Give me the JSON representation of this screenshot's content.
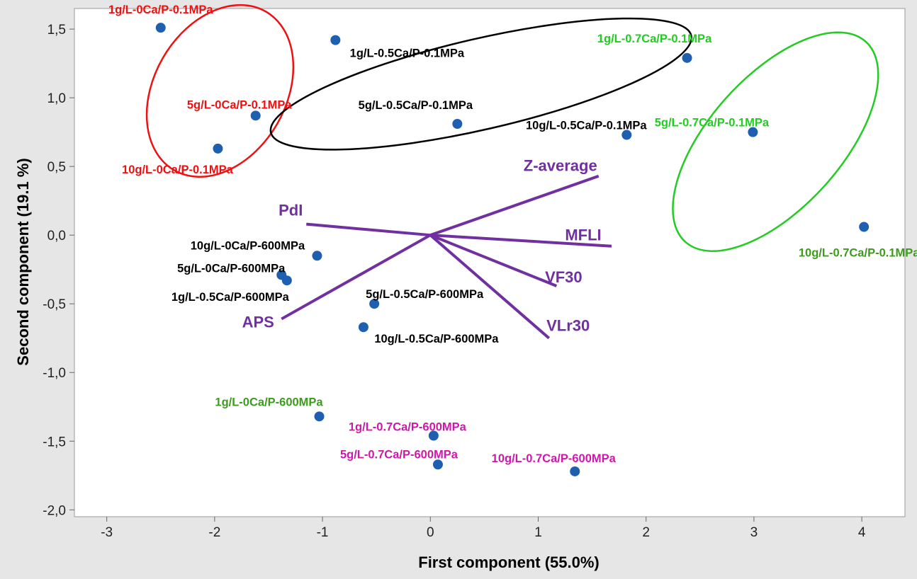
{
  "chart_data": {
    "type": "scatter",
    "xlabel": "First component  (55.0%)",
    "ylabel": "Second component  (19.1 %)",
    "xlim": [
      -3.3,
      4.4
    ],
    "ylim": [
      -2.05,
      1.65
    ],
    "xticks": [
      -3,
      -2,
      -1,
      0,
      1,
      2,
      3,
      4
    ],
    "xtick_labels": [
      "-3",
      "-2",
      "-1",
      "0",
      "1",
      "2",
      "3",
      "4"
    ],
    "yticks": [
      -2.0,
      -1.5,
      -1.0,
      -0.5,
      0.0,
      0.5,
      1.0,
      1.5
    ],
    "ytick_labels": [
      "-2,0",
      "-1,5",
      "-1,0",
      "-0,5",
      "0,0",
      "0,5",
      "1,0",
      "1,5"
    ],
    "grid": false,
    "colors": {
      "point": "#1f5fb0",
      "vector": "#7030a0",
      "red": "#ee1111",
      "black": "#000000",
      "green": "#22cc22",
      "olive": "#3d9b1d",
      "magenta": "#d018a8"
    },
    "points": [
      {
        "label": "1g/L-0Ca/P-0.1MPa",
        "x": -2.5,
        "y": 1.51,
        "color": "red"
      },
      {
        "label": "5g/L-0Ca/P-0.1MPa",
        "x": -1.62,
        "y": 0.87,
        "color": "red"
      },
      {
        "label": "10g/L-0Ca/P-0.1MPa",
        "x": -1.97,
        "y": 0.63,
        "color": "red"
      },
      {
        "label": "1g/L-0.5Ca/P-0.1MPa",
        "x": -0.88,
        "y": 1.42,
        "color": "black"
      },
      {
        "label": "5g/L-0.5Ca/P-0.1MPa",
        "x": 0.25,
        "y": 0.81,
        "color": "black"
      },
      {
        "label": "10g/L-0.5Ca/P-0.1MPa",
        "x": 1.82,
        "y": 0.73,
        "color": "black"
      },
      {
        "label": "1g/L-0.7Ca/P-0.1MPa",
        "x": 2.38,
        "y": 1.29,
        "color": "green"
      },
      {
        "label": "5g/L-0.7Ca/P-0.1MPa",
        "x": 2.99,
        "y": 0.75,
        "color": "green"
      },
      {
        "label": "10g/L-0.7Ca/P-0.1MPa",
        "x": 4.02,
        "y": 0.06,
        "color": "olive"
      },
      {
        "label": "10g/L-0Ca/P-600MPa",
        "x": -1.05,
        "y": -0.15,
        "color": "black"
      },
      {
        "label": "5g/L-0Ca/P-600MPa",
        "x": -1.38,
        "y": -0.29,
        "color": "black"
      },
      {
        "label": "1g/L-0.5Ca/P-600MPa",
        "x": -1.33,
        "y": -0.33,
        "color": "black"
      },
      {
        "label": "5g/L-0.5Ca/P-600MPa",
        "x": -0.52,
        "y": -0.5,
        "color": "black"
      },
      {
        "label": "10g/L-0.5Ca/P-600MPa",
        "x": -0.62,
        "y": -0.67,
        "color": "black"
      },
      {
        "label": "1g/L-0Ca/P-600MPa",
        "x": -1.03,
        "y": -1.32,
        "color": "olive"
      },
      {
        "label": "1g/L-0.7Ca/P-600MPa",
        "x": 0.03,
        "y": -1.46,
        "color": "magenta"
      },
      {
        "label": "5g/L-0.7Ca/P-600MPa",
        "x": 0.07,
        "y": -1.67,
        "color": "magenta"
      },
      {
        "label": "10g/L-0.7Ca/P-600MPa",
        "x": 1.34,
        "y": -1.72,
        "color": "magenta"
      }
    ],
    "vectors": [
      {
        "label": "Z-average",
        "x": 1.56,
        "y": 0.43
      },
      {
        "label": "PdI",
        "x": -1.15,
        "y": 0.08
      },
      {
        "label": "MFLI",
        "x": 1.68,
        "y": -0.08
      },
      {
        "label": "VF30",
        "x": 1.17,
        "y": -0.37
      },
      {
        "label": "VLr30",
        "x": 1.1,
        "y": -0.75
      },
      {
        "label": "APS",
        "x": -1.38,
        "y": -0.61
      }
    ],
    "groups": [
      {
        "cx": -1.95,
        "cy": 1.05,
        "rx": 0.85,
        "ry": 0.48,
        "angle": -60,
        "color": "red"
      },
      {
        "cx": 0.47,
        "cy": 1.1,
        "rx": 2.0,
        "ry": 0.33,
        "angle": -13,
        "color": "black"
      },
      {
        "cx": 3.2,
        "cy": 0.68,
        "rx": 1.25,
        "ry": 0.48,
        "angle": -48,
        "color": "green"
      }
    ]
  }
}
